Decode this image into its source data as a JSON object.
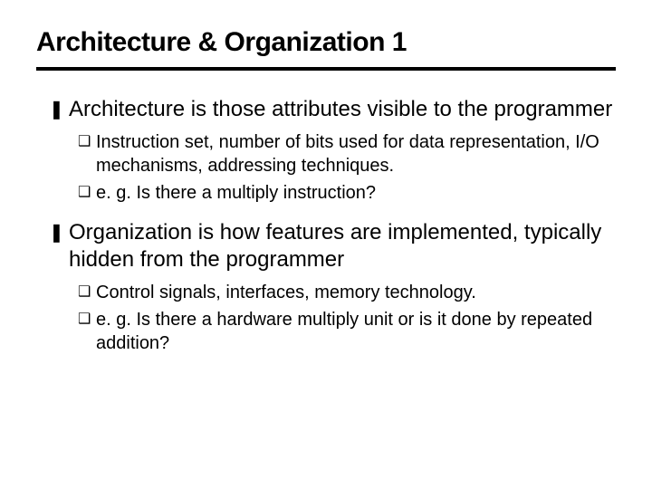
{
  "title": "Architecture & Organization 1",
  "bullets": {
    "b1": "Architecture is those attributes visible to the programmer",
    "b1a": "Instruction set, number of bits used for data representation, I/O mechanisms, addressing techniques.",
    "b1b": "e. g. Is there a multiply instruction?",
    "b2": "Organization is how features are implemented, typically hidden from the programmer",
    "b2a": "Control signals, interfaces, memory technology.",
    "b2b": "e. g. Is there a hardware multiply unit or is it done by repeated addition?"
  },
  "glyphs": {
    "z": "❚",
    "y": "❑"
  },
  "colors": {
    "text": "#000000",
    "rule": "#000000",
    "background": "#ffffff"
  },
  "typography": {
    "title_fontsize": 30,
    "level1_fontsize": 24,
    "level2_fontsize": 20,
    "title_weight": 900
  }
}
